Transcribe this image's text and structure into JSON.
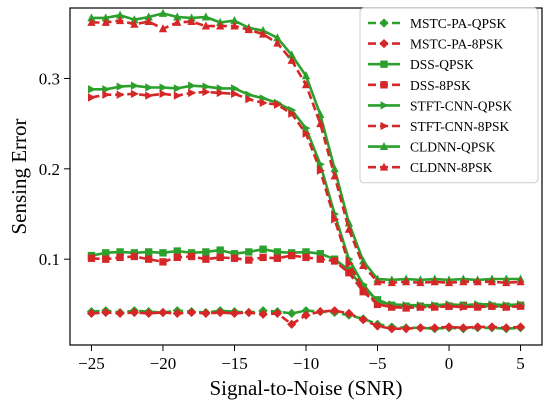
{
  "chart_data": {
    "type": "line",
    "title": "",
    "xlabel": "Signal-to-Noise (SNR)",
    "ylabel": "Sensing Error",
    "xlim": [
      -26.5,
      6.5
    ],
    "ylim": [
      0.005,
      0.378
    ],
    "xticks": [
      -25,
      -20,
      -15,
      -10,
      -5,
      0,
      5
    ],
    "xtick_labels": [
      "−25",
      "−20",
      "−15",
      "−10",
      "−5",
      "0",
      "5"
    ],
    "yticks": [
      0.1,
      0.2,
      0.3
    ],
    "ytick_labels": [
      "0.1",
      "0.2",
      "0.3"
    ],
    "grid": false,
    "legend_position": "top-right",
    "x": [
      -25,
      -24,
      -23,
      -22,
      -21,
      -20,
      -19,
      -18,
      -17,
      -16,
      -15,
      -14,
      -13,
      -12,
      -11,
      -10,
      -9,
      -8,
      -7,
      -6,
      -5,
      -4,
      -3,
      -2,
      -1,
      0,
      1,
      2,
      3,
      4,
      5
    ],
    "series": [
      {
        "name": "MSTC-PA-QPSK",
        "color": "#2ca02c",
        "dash": "dashed",
        "marker": "diamond",
        "values": [
          0.042,
          0.043,
          0.041,
          0.043,
          0.042,
          0.041,
          0.043,
          0.042,
          0.041,
          0.043,
          0.042,
          0.041,
          0.043,
          0.042,
          0.04,
          0.043,
          0.042,
          0.041,
          0.038,
          0.034,
          0.028,
          0.025,
          0.024,
          0.024,
          0.023,
          0.024,
          0.023,
          0.024,
          0.024,
          0.023,
          0.024
        ]
      },
      {
        "name": "MSTC-PA-8PSK",
        "color": "#d62728",
        "dash": "dashed",
        "marker": "diamond",
        "values": [
          0.04,
          0.041,
          0.04,
          0.041,
          0.04,
          0.041,
          0.04,
          0.041,
          0.04,
          0.041,
          0.04,
          0.041,
          0.039,
          0.04,
          0.028,
          0.038,
          0.042,
          0.043,
          0.04,
          0.033,
          0.026,
          0.023,
          0.023,
          0.024,
          0.024,
          0.025,
          0.024,
          0.025,
          0.025,
          0.024,
          0.025
        ]
      },
      {
        "name": "DSS-QPSK",
        "color": "#2ca02c",
        "dash": "solid",
        "marker": "square",
        "values": [
          0.104,
          0.107,
          0.108,
          0.107,
          0.108,
          0.107,
          0.109,
          0.107,
          0.108,
          0.11,
          0.106,
          0.108,
          0.111,
          0.108,
          0.107,
          0.108,
          0.106,
          0.1,
          0.088,
          0.068,
          0.055,
          0.049,
          0.048,
          0.048,
          0.048,
          0.048,
          0.049,
          0.048,
          0.048,
          0.048,
          0.049
        ]
      },
      {
        "name": "DSS-8PSK",
        "color": "#d62728",
        "dash": "dashed",
        "marker": "square",
        "values": [
          0.101,
          0.1,
          0.102,
          0.103,
          0.1,
          0.097,
          0.102,
          0.103,
          0.1,
          0.102,
          0.101,
          0.099,
          0.102,
          0.101,
          0.104,
          0.102,
          0.1,
          0.098,
          0.085,
          0.064,
          0.05,
          0.047,
          0.046,
          0.047,
          0.047,
          0.048,
          0.048,
          0.047,
          0.048,
          0.047,
          0.048
        ]
      },
      {
        "name": "STFT-CNN-QPSK",
        "color": "#2ca02c",
        "dash": "solid",
        "marker": "triangle-right",
        "values": [
          0.288,
          0.288,
          0.291,
          0.292,
          0.29,
          0.29,
          0.289,
          0.292,
          0.291,
          0.289,
          0.289,
          0.282,
          0.278,
          0.273,
          0.265,
          0.245,
          0.205,
          0.15,
          0.1,
          0.072,
          0.053,
          0.05,
          0.049,
          0.049,
          0.049,
          0.05,
          0.049,
          0.05,
          0.05,
          0.049,
          0.05
        ]
      },
      {
        "name": "STFT-CNN-8PSK",
        "color": "#d62728",
        "dash": "dashed",
        "marker": "triangle-right",
        "values": [
          0.279,
          0.282,
          0.282,
          0.283,
          0.281,
          0.283,
          0.281,
          0.284,
          0.285,
          0.284,
          0.283,
          0.277,
          0.273,
          0.271,
          0.261,
          0.239,
          0.198,
          0.144,
          0.095,
          0.067,
          0.05,
          0.047,
          0.047,
          0.047,
          0.047,
          0.048,
          0.047,
          0.048,
          0.048,
          0.047,
          0.048
        ]
      },
      {
        "name": "CLDNN-QPSK",
        "color": "#2ca02c",
        "dash": "solid",
        "marker": "triangle-up",
        "values": [
          0.367,
          0.367,
          0.37,
          0.365,
          0.368,
          0.372,
          0.368,
          0.367,
          0.368,
          0.362,
          0.364,
          0.356,
          0.353,
          0.345,
          0.326,
          0.303,
          0.26,
          0.2,
          0.14,
          0.098,
          0.078,
          0.077,
          0.078,
          0.077,
          0.078,
          0.077,
          0.078,
          0.077,
          0.078,
          0.078,
          0.078
        ]
      },
      {
        "name": "CLDNN-8PSK",
        "color": "#d62728",
        "dash": "dashed",
        "marker": "triangle-up",
        "values": [
          0.362,
          0.362,
          0.364,
          0.36,
          0.363,
          0.355,
          0.362,
          0.363,
          0.358,
          0.358,
          0.358,
          0.354,
          0.349,
          0.339,
          0.32,
          0.293,
          0.25,
          0.192,
          0.133,
          0.093,
          0.075,
          0.074,
          0.075,
          0.074,
          0.075,
          0.074,
          0.075,
          0.075,
          0.075,
          0.074,
          0.075
        ]
      }
    ]
  }
}
